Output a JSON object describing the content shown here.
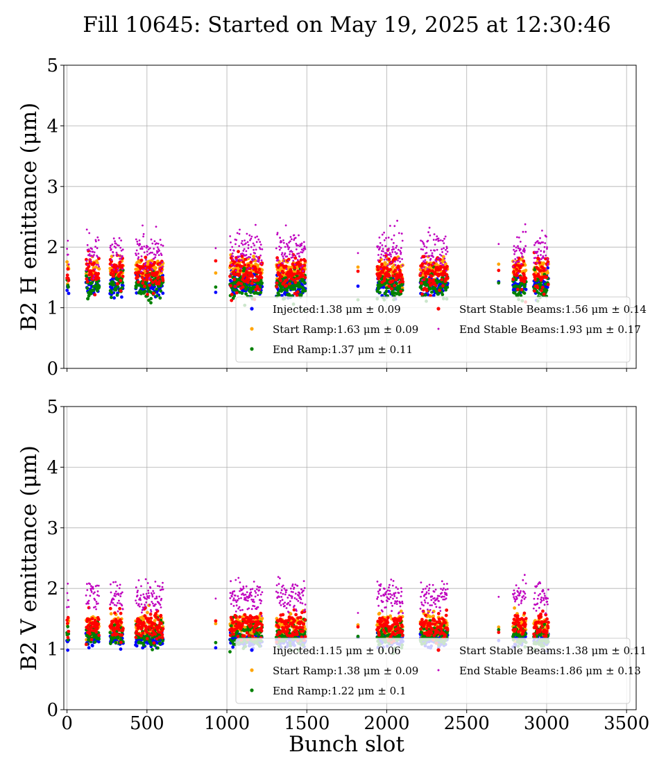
{
  "figure": {
    "title": "Fill 10645: Started on May 19, 2025 at 12:30:46",
    "xlabel": "Bunch slot"
  },
  "chart_data": [
    {
      "type": "scatter",
      "ylabel": "B2 H emittance (μm)",
      "xlim": [
        -20,
        3560
      ],
      "ylim": [
        0,
        5
      ],
      "x_ticks": [
        0,
        500,
        1000,
        1500,
        2000,
        2500,
        3000,
        3500
      ],
      "y_ticks": [
        0,
        1,
        2,
        3,
        4,
        5
      ],
      "grid": true,
      "legend_position": "lower right",
      "series": [
        {
          "name": "Injected:1.38 μm ± 0.09",
          "color": "#0000ff",
          "mean": 1.38,
          "std": 0.09,
          "trains": [
            [
              0,
              10
            ],
            [
              120,
              200
            ],
            [
              270,
              350
            ],
            [
              430,
              600
            ],
            [
              930,
              930
            ],
            [
              1020,
              1220
            ],
            [
              1310,
              1490
            ],
            [
              1820,
              1820
            ],
            [
              1940,
              2100
            ],
            [
              2210,
              2380
            ],
            [
              2700,
              2700
            ],
            [
              2790,
              2870
            ],
            [
              2920,
              3010
            ]
          ]
        },
        {
          "name": "Start Ramp:1.63 μm ± 0.09",
          "color": "#ffa500",
          "mean": 1.63,
          "std": 0.09,
          "trains": [
            [
              0,
              10
            ],
            [
              120,
              200
            ],
            [
              270,
              350
            ],
            [
              430,
              600
            ],
            [
              930,
              930
            ],
            [
              1020,
              1220
            ],
            [
              1310,
              1490
            ],
            [
              1820,
              1820
            ],
            [
              1940,
              2100
            ],
            [
              2210,
              2380
            ],
            [
              2700,
              2700
            ],
            [
              2790,
              2870
            ],
            [
              2920,
              3010
            ]
          ]
        },
        {
          "name": "End Ramp:1.37 μm ± 0.11",
          "color": "#008000",
          "mean": 1.37,
          "std": 0.11,
          "trains": [
            [
              0,
              10
            ],
            [
              120,
              200
            ],
            [
              270,
              350
            ],
            [
              430,
              600
            ],
            [
              930,
              930
            ],
            [
              1020,
              1220
            ],
            [
              1310,
              1490
            ],
            [
              1820,
              1820
            ],
            [
              1940,
              2100
            ],
            [
              2210,
              2380
            ],
            [
              2700,
              2700
            ],
            [
              2790,
              2870
            ],
            [
              2920,
              3010
            ]
          ]
        },
        {
          "name": "Start Stable Beams:1.56 μm ± 0.14",
          "color": "#ff0000",
          "mean": 1.56,
          "std": 0.14,
          "trains": [
            [
              0,
              10
            ],
            [
              120,
              200
            ],
            [
              270,
              350
            ],
            [
              430,
              600
            ],
            [
              930,
              930
            ],
            [
              1020,
              1220
            ],
            [
              1310,
              1490
            ],
            [
              1820,
              1820
            ],
            [
              1940,
              2100
            ],
            [
              2210,
              2380
            ],
            [
              2700,
              2700
            ],
            [
              2790,
              2870
            ],
            [
              2920,
              3010
            ]
          ]
        },
        {
          "name": "End Stable Beams:1.93 μm ± 0.17",
          "color": "#bf00bf",
          "mean": 1.93,
          "std": 0.17,
          "trains": [
            [
              0,
              10
            ],
            [
              120,
              200
            ],
            [
              270,
              350
            ],
            [
              430,
              600
            ],
            [
              930,
              930
            ],
            [
              1020,
              1220
            ],
            [
              1310,
              1490
            ],
            [
              1820,
              1820
            ],
            [
              1940,
              2100
            ],
            [
              2210,
              2380
            ],
            [
              2700,
              2700
            ],
            [
              2790,
              2870
            ],
            [
              2920,
              3010
            ]
          ]
        }
      ]
    },
    {
      "type": "scatter",
      "ylabel": "B2 V emittance (μm)",
      "xlim": [
        -20,
        3560
      ],
      "ylim": [
        0,
        5
      ],
      "x_ticks": [
        0,
        500,
        1000,
        1500,
        2000,
        2500,
        3000,
        3500
      ],
      "y_ticks": [
        0,
        1,
        2,
        3,
        4,
        5
      ],
      "grid": true,
      "legend_position": "lower right",
      "series": [
        {
          "name": "Injected:1.15 μm ± 0.06",
          "color": "#0000ff",
          "mean": 1.15,
          "std": 0.06,
          "trains": [
            [
              0,
              10
            ],
            [
              120,
              200
            ],
            [
              270,
              350
            ],
            [
              430,
              600
            ],
            [
              930,
              930
            ],
            [
              1020,
              1220
            ],
            [
              1310,
              1490
            ],
            [
              1820,
              1820
            ],
            [
              1940,
              2100
            ],
            [
              2210,
              2380
            ],
            [
              2700,
              2700
            ],
            [
              2790,
              2870
            ],
            [
              2920,
              3010
            ]
          ]
        },
        {
          "name": "Start Ramp:1.38 μm ± 0.09",
          "color": "#ffa500",
          "mean": 1.38,
          "std": 0.09,
          "trains": [
            [
              0,
              10
            ],
            [
              120,
              200
            ],
            [
              270,
              350
            ],
            [
              430,
              600
            ],
            [
              930,
              930
            ],
            [
              1020,
              1220
            ],
            [
              1310,
              1490
            ],
            [
              1820,
              1820
            ],
            [
              1940,
              2100
            ],
            [
              2210,
              2380
            ],
            [
              2700,
              2700
            ],
            [
              2790,
              2870
            ],
            [
              2920,
              3010
            ]
          ]
        },
        {
          "name": "End Ramp:1.22 μm ± 0.1",
          "color": "#008000",
          "mean": 1.22,
          "std": 0.1,
          "trains": [
            [
              0,
              10
            ],
            [
              120,
              200
            ],
            [
              270,
              350
            ],
            [
              430,
              600
            ],
            [
              930,
              930
            ],
            [
              1020,
              1220
            ],
            [
              1310,
              1490
            ],
            [
              1820,
              1820
            ],
            [
              1940,
              2100
            ],
            [
              2210,
              2380
            ],
            [
              2700,
              2700
            ],
            [
              2790,
              2870
            ],
            [
              2920,
              3010
            ]
          ]
        },
        {
          "name": "Start Stable Beams:1.38 μm ± 0.11",
          "color": "#ff0000",
          "mean": 1.38,
          "std": 0.11,
          "trains": [
            [
              0,
              10
            ],
            [
              120,
              200
            ],
            [
              270,
              350
            ],
            [
              430,
              600
            ],
            [
              930,
              930
            ],
            [
              1020,
              1220
            ],
            [
              1310,
              1490
            ],
            [
              1820,
              1820
            ],
            [
              1940,
              2100
            ],
            [
              2210,
              2380
            ],
            [
              2700,
              2700
            ],
            [
              2790,
              2870
            ],
            [
              2920,
              3010
            ]
          ]
        },
        {
          "name": "End Stable Beams:1.86 μm ± 0.13",
          "color": "#bf00bf",
          "mean": 1.86,
          "std": 0.13,
          "trains": [
            [
              0,
              10
            ],
            [
              120,
              200
            ],
            [
              270,
              350
            ],
            [
              430,
              600
            ],
            [
              930,
              930
            ],
            [
              1020,
              1220
            ],
            [
              1310,
              1490
            ],
            [
              1820,
              1820
            ],
            [
              1940,
              2100
            ],
            [
              2210,
              2380
            ],
            [
              2700,
              2700
            ],
            [
              2790,
              2870
            ],
            [
              2920,
              3010
            ]
          ]
        }
      ]
    }
  ]
}
